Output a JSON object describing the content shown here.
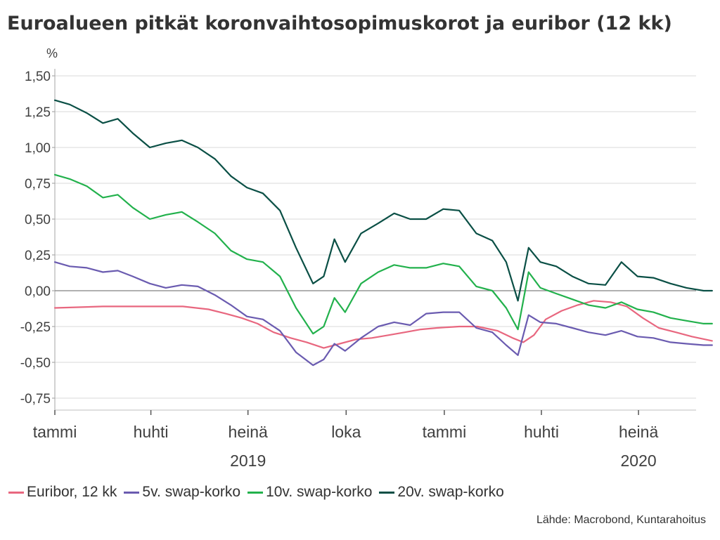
{
  "title": "Euroalueen pitkät koronvaihtosopimuskorot ja euribor (12 kk)",
  "source": "Lähde: Macrobond, Kuntarahoitus",
  "colors": {
    "euribor": "#e8677f",
    "swap5": "#6a5bb0",
    "swap10": "#22b14c",
    "swap20": "#0a4f45",
    "grid": "#d9d9d9",
    "zero": "#808080"
  },
  "chart_data": {
    "type": "line",
    "ylabel": "%",
    "ylim": [
      -0.8,
      1.6
    ],
    "yticks": [
      1.5,
      1.25,
      1.0,
      0.75,
      0.5,
      0.25,
      0.0,
      -0.25,
      -0.5,
      -0.75
    ],
    "ytick_labels": [
      "1,50",
      "1,25",
      "1,00",
      "0,75",
      "0,50",
      "0,25",
      "0,00",
      "-0,25",
      "-0,50",
      "-0,75"
    ],
    "x_ticks": [
      {
        "x": "2019-01-01",
        "label": "tammi"
      },
      {
        "x": "2019-04-01",
        "label": "huhti"
      },
      {
        "x": "2019-07-01",
        "label": "heinä"
      },
      {
        "x": "2019-10-01",
        "label": "loka"
      },
      {
        "x": "2020-01-01",
        "label": "tammi"
      },
      {
        "x": "2020-04-01",
        "label": "huhti"
      },
      {
        "x": "2020-07-01",
        "label": "heinä"
      }
    ],
    "year_labels": [
      {
        "x": "2019-07-01",
        "label": "2019"
      },
      {
        "x": "2020-07-01",
        "label": "2020"
      }
    ],
    "x_range": [
      "2019-01-01",
      "2020-09-10"
    ],
    "grid": true,
    "legend": "bottom",
    "series": [
      {
        "name": "Euribor, 12 kk",
        "key": "euribor",
        "points": [
          [
            "2019-01-01",
            -0.12
          ],
          [
            "2019-02-15",
            -0.11
          ],
          [
            "2019-04-01",
            -0.11
          ],
          [
            "2019-05-01",
            -0.11
          ],
          [
            "2019-05-25",
            -0.13
          ],
          [
            "2019-06-10",
            -0.16
          ],
          [
            "2019-06-25",
            -0.19
          ],
          [
            "2019-07-10",
            -0.23
          ],
          [
            "2019-07-25",
            -0.29
          ],
          [
            "2019-08-10",
            -0.33
          ],
          [
            "2019-08-25",
            -0.36
          ],
          [
            "2019-09-10",
            -0.4
          ],
          [
            "2019-09-25",
            -0.37
          ],
          [
            "2019-10-10",
            -0.34
          ],
          [
            "2019-10-25",
            -0.33
          ],
          [
            "2019-11-10",
            -0.31
          ],
          [
            "2019-11-25",
            -0.29
          ],
          [
            "2019-12-10",
            -0.27
          ],
          [
            "2019-12-25",
            -0.26
          ],
          [
            "2020-01-15",
            -0.25
          ],
          [
            "2020-02-01",
            -0.25
          ],
          [
            "2020-02-20",
            -0.28
          ],
          [
            "2020-03-05",
            -0.33
          ],
          [
            "2020-03-15",
            -0.36
          ],
          [
            "2020-03-25",
            -0.31
          ],
          [
            "2020-04-05",
            -0.2
          ],
          [
            "2020-04-20",
            -0.14
          ],
          [
            "2020-05-05",
            -0.1
          ],
          [
            "2020-05-20",
            -0.07
          ],
          [
            "2020-06-05",
            -0.08
          ],
          [
            "2020-06-20",
            -0.11
          ],
          [
            "2020-07-05",
            -0.19
          ],
          [
            "2020-07-20",
            -0.26
          ],
          [
            "2020-08-05",
            -0.29
          ],
          [
            "2020-08-20",
            -0.32
          ],
          [
            "2020-09-08",
            -0.35
          ]
        ]
      },
      {
        "name": "5v. swap-korko",
        "key": "swap5",
        "points": [
          [
            "2019-01-01",
            0.2
          ],
          [
            "2019-01-15",
            0.17
          ],
          [
            "2019-01-31",
            0.16
          ],
          [
            "2019-02-15",
            0.13
          ],
          [
            "2019-03-01",
            0.14
          ],
          [
            "2019-03-15",
            0.1
          ],
          [
            "2019-03-31",
            0.05
          ],
          [
            "2019-04-15",
            0.02
          ],
          [
            "2019-04-30",
            0.04
          ],
          [
            "2019-05-15",
            0.03
          ],
          [
            "2019-05-31",
            -0.03
          ],
          [
            "2019-06-15",
            -0.1
          ],
          [
            "2019-06-30",
            -0.18
          ],
          [
            "2019-07-15",
            -0.2
          ],
          [
            "2019-07-31",
            -0.28
          ],
          [
            "2019-08-15",
            -0.43
          ],
          [
            "2019-08-31",
            -0.52
          ],
          [
            "2019-09-10",
            -0.48
          ],
          [
            "2019-09-20",
            -0.37
          ],
          [
            "2019-09-30",
            -0.42
          ],
          [
            "2019-10-15",
            -0.33
          ],
          [
            "2019-10-31",
            -0.25
          ],
          [
            "2019-11-15",
            -0.22
          ],
          [
            "2019-11-30",
            -0.24
          ],
          [
            "2019-12-15",
            -0.16
          ],
          [
            "2019-12-31",
            -0.15
          ],
          [
            "2020-01-15",
            -0.15
          ],
          [
            "2020-01-31",
            -0.26
          ],
          [
            "2020-02-15",
            -0.29
          ],
          [
            "2020-02-28",
            -0.38
          ],
          [
            "2020-03-10",
            -0.45
          ],
          [
            "2020-03-20",
            -0.17
          ],
          [
            "2020-03-31",
            -0.22
          ],
          [
            "2020-04-15",
            -0.23
          ],
          [
            "2020-04-30",
            -0.26
          ],
          [
            "2020-05-15",
            -0.29
          ],
          [
            "2020-05-31",
            -0.31
          ],
          [
            "2020-06-15",
            -0.28
          ],
          [
            "2020-06-30",
            -0.32
          ],
          [
            "2020-07-15",
            -0.33
          ],
          [
            "2020-07-31",
            -0.36
          ],
          [
            "2020-08-15",
            -0.37
          ],
          [
            "2020-08-31",
            -0.38
          ],
          [
            "2020-09-08",
            -0.38
          ]
        ]
      },
      {
        "name": "10v. swap-korko",
        "key": "swap10",
        "points": [
          [
            "2019-01-01",
            0.81
          ],
          [
            "2019-01-15",
            0.78
          ],
          [
            "2019-01-31",
            0.73
          ],
          [
            "2019-02-15",
            0.65
          ],
          [
            "2019-03-01",
            0.67
          ],
          [
            "2019-03-15",
            0.58
          ],
          [
            "2019-03-31",
            0.5
          ],
          [
            "2019-04-15",
            0.53
          ],
          [
            "2019-04-30",
            0.55
          ],
          [
            "2019-05-15",
            0.48
          ],
          [
            "2019-05-31",
            0.4
          ],
          [
            "2019-06-15",
            0.28
          ],
          [
            "2019-06-30",
            0.22
          ],
          [
            "2019-07-15",
            0.2
          ],
          [
            "2019-07-31",
            0.1
          ],
          [
            "2019-08-15",
            -0.12
          ],
          [
            "2019-08-31",
            -0.3
          ],
          [
            "2019-09-10",
            -0.25
          ],
          [
            "2019-09-20",
            -0.05
          ],
          [
            "2019-09-30",
            -0.15
          ],
          [
            "2019-10-15",
            0.05
          ],
          [
            "2019-10-31",
            0.13
          ],
          [
            "2019-11-15",
            0.18
          ],
          [
            "2019-11-30",
            0.16
          ],
          [
            "2019-12-15",
            0.16
          ],
          [
            "2019-12-31",
            0.19
          ],
          [
            "2020-01-15",
            0.17
          ],
          [
            "2020-01-31",
            0.03
          ],
          [
            "2020-02-15",
            0.0
          ],
          [
            "2020-02-28",
            -0.12
          ],
          [
            "2020-03-10",
            -0.27
          ],
          [
            "2020-03-20",
            0.13
          ],
          [
            "2020-03-31",
            0.02
          ],
          [
            "2020-04-15",
            -0.02
          ],
          [
            "2020-04-30",
            -0.06
          ],
          [
            "2020-05-15",
            -0.1
          ],
          [
            "2020-05-31",
            -0.12
          ],
          [
            "2020-06-15",
            -0.08
          ],
          [
            "2020-06-30",
            -0.13
          ],
          [
            "2020-07-15",
            -0.15
          ],
          [
            "2020-07-31",
            -0.19
          ],
          [
            "2020-08-15",
            -0.21
          ],
          [
            "2020-08-31",
            -0.23
          ],
          [
            "2020-09-08",
            -0.23
          ]
        ]
      },
      {
        "name": "20v. swap-korko",
        "key": "swap20",
        "points": [
          [
            "2019-01-01",
            1.33
          ],
          [
            "2019-01-15",
            1.3
          ],
          [
            "2019-01-31",
            1.24
          ],
          [
            "2019-02-15",
            1.17
          ],
          [
            "2019-03-01",
            1.2
          ],
          [
            "2019-03-15",
            1.1
          ],
          [
            "2019-03-31",
            1.0
          ],
          [
            "2019-04-15",
            1.03
          ],
          [
            "2019-04-30",
            1.05
          ],
          [
            "2019-05-15",
            1.0
          ],
          [
            "2019-05-31",
            0.92
          ],
          [
            "2019-06-15",
            0.8
          ],
          [
            "2019-06-30",
            0.72
          ],
          [
            "2019-07-15",
            0.68
          ],
          [
            "2019-07-31",
            0.56
          ],
          [
            "2019-08-15",
            0.3
          ],
          [
            "2019-08-31",
            0.05
          ],
          [
            "2019-09-10",
            0.1
          ],
          [
            "2019-09-20",
            0.36
          ],
          [
            "2019-09-30",
            0.2
          ],
          [
            "2019-10-15",
            0.4
          ],
          [
            "2019-10-31",
            0.47
          ],
          [
            "2019-11-15",
            0.54
          ],
          [
            "2019-11-30",
            0.5
          ],
          [
            "2019-12-15",
            0.5
          ],
          [
            "2019-12-31",
            0.57
          ],
          [
            "2020-01-15",
            0.56
          ],
          [
            "2020-01-31",
            0.4
          ],
          [
            "2020-02-15",
            0.35
          ],
          [
            "2020-02-28",
            0.2
          ],
          [
            "2020-03-10",
            -0.07
          ],
          [
            "2020-03-20",
            0.3
          ],
          [
            "2020-03-31",
            0.2
          ],
          [
            "2020-04-15",
            0.17
          ],
          [
            "2020-04-30",
            0.1
          ],
          [
            "2020-05-15",
            0.05
          ],
          [
            "2020-05-31",
            0.04
          ],
          [
            "2020-06-15",
            0.2
          ],
          [
            "2020-06-30",
            0.1
          ],
          [
            "2020-07-15",
            0.09
          ],
          [
            "2020-07-31",
            0.05
          ],
          [
            "2020-08-15",
            0.02
          ],
          [
            "2020-08-31",
            0.0
          ],
          [
            "2020-09-08",
            0.0
          ]
        ]
      }
    ]
  }
}
